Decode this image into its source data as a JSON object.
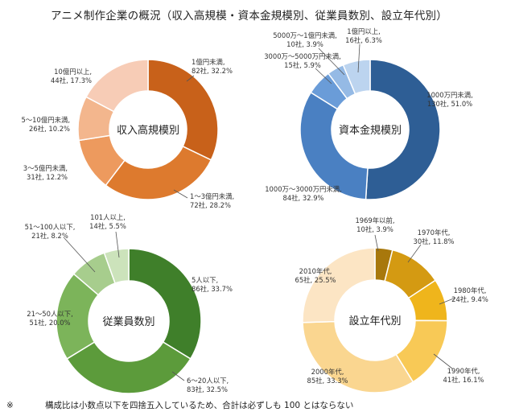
{
  "title": "アニメ制作企業の概況（収入高規模・資本金規模別、従業員数別、設立年代別）",
  "footnote": {
    "mark": "※",
    "text": "構成比は小数点以下を四捨五入しているため、合計は必ずしも 100 とはならない"
  },
  "chart_data": [
    {
      "type": "pie",
      "donut": true,
      "title": "収入高規模別",
      "series": [
        {
          "name": "1億円未満",
          "count": "82社",
          "percent": "32.2%",
          "value": 32.2,
          "color": "#c8611a"
        },
        {
          "name": "1～3億円未満",
          "count": "72社",
          "percent": "28.2%",
          "value": 28.2,
          "color": "#dd7a2e"
        },
        {
          "name": "3～5億円未満",
          "count": "31社",
          "percent": "12.2%",
          "value": 12.2,
          "color": "#ed9a5e"
        },
        {
          "name": "5～10億円未満",
          "count": "26社",
          "percent": "10.2%",
          "value": 10.2,
          "color": "#f3b68d"
        },
        {
          "name": "10億円以上",
          "count": "44社",
          "percent": "17.3%",
          "value": 17.3,
          "color": "#f7ccb6"
        }
      ]
    },
    {
      "type": "pie",
      "donut": true,
      "title": "資本金規模別",
      "series": [
        {
          "name": "1000万円未満",
          "count": "130社",
          "percent": "51.0%",
          "value": 51.0,
          "color": "#2e5e95"
        },
        {
          "name": "1000万～3000万円未満",
          "count": "84社",
          "percent": "32.9%",
          "value": 32.9,
          "color": "#4a80c2"
        },
        {
          "name": "3000万～5000万円未満",
          "count": "15社",
          "percent": "5.9%",
          "value": 5.9,
          "color": "#6a9cd8"
        },
        {
          "name": "5000万～1億円未満",
          "count": "10社",
          "percent": "3.9%",
          "value": 3.9,
          "color": "#95bae5"
        },
        {
          "name": "1億円以上",
          "count": "16社",
          "percent": "6.3%",
          "value": 6.3,
          "color": "#bcd4ef"
        }
      ]
    },
    {
      "type": "pie",
      "donut": true,
      "title": "従業員数別",
      "series": [
        {
          "name": "5人以下",
          "count": "86社",
          "percent": "33.7%",
          "value": 33.7,
          "color": "#3f7f2a"
        },
        {
          "name": "6～20人以下",
          "count": "83社",
          "percent": "32.5%",
          "value": 32.5,
          "color": "#5c9b3b"
        },
        {
          "name": "21～50人以下",
          "count": "51社",
          "percent": "20.0%",
          "value": 20.0,
          "color": "#7cb45a"
        },
        {
          "name": "51～100人以下",
          "count": "21社",
          "percent": "8.2%",
          "value": 8.2,
          "color": "#a7cd8d"
        },
        {
          "name": "101人以上",
          "count": "14社",
          "percent": "5.5%",
          "value": 5.5,
          "color": "#cce3bb"
        }
      ]
    },
    {
      "type": "pie",
      "donut": true,
      "title": "設立年代別",
      "series": [
        {
          "name": "1969年以前",
          "count": "10社",
          "percent": "3.9%",
          "value": 3.9,
          "color": "#a8780c"
        },
        {
          "name": "1970年代",
          "count": "30社",
          "percent": "11.8%",
          "value": 11.8,
          "color": "#d49a12"
        },
        {
          "name": "1980年代",
          "count": "24社",
          "percent": "9.4%",
          "value": 9.4,
          "color": "#efb51c"
        },
        {
          "name": "1990年代",
          "count": "41社",
          "percent": "16.1%",
          "value": 16.1,
          "color": "#f8c956"
        },
        {
          "name": "2000年代",
          "count": "85社",
          "percent": "33.3%",
          "value": 33.3,
          "color": "#fad690"
        },
        {
          "name": "2010年代",
          "count": "65社",
          "percent": "25.5%",
          "value": 25.5,
          "color": "#fce5c4"
        }
      ]
    }
  ]
}
